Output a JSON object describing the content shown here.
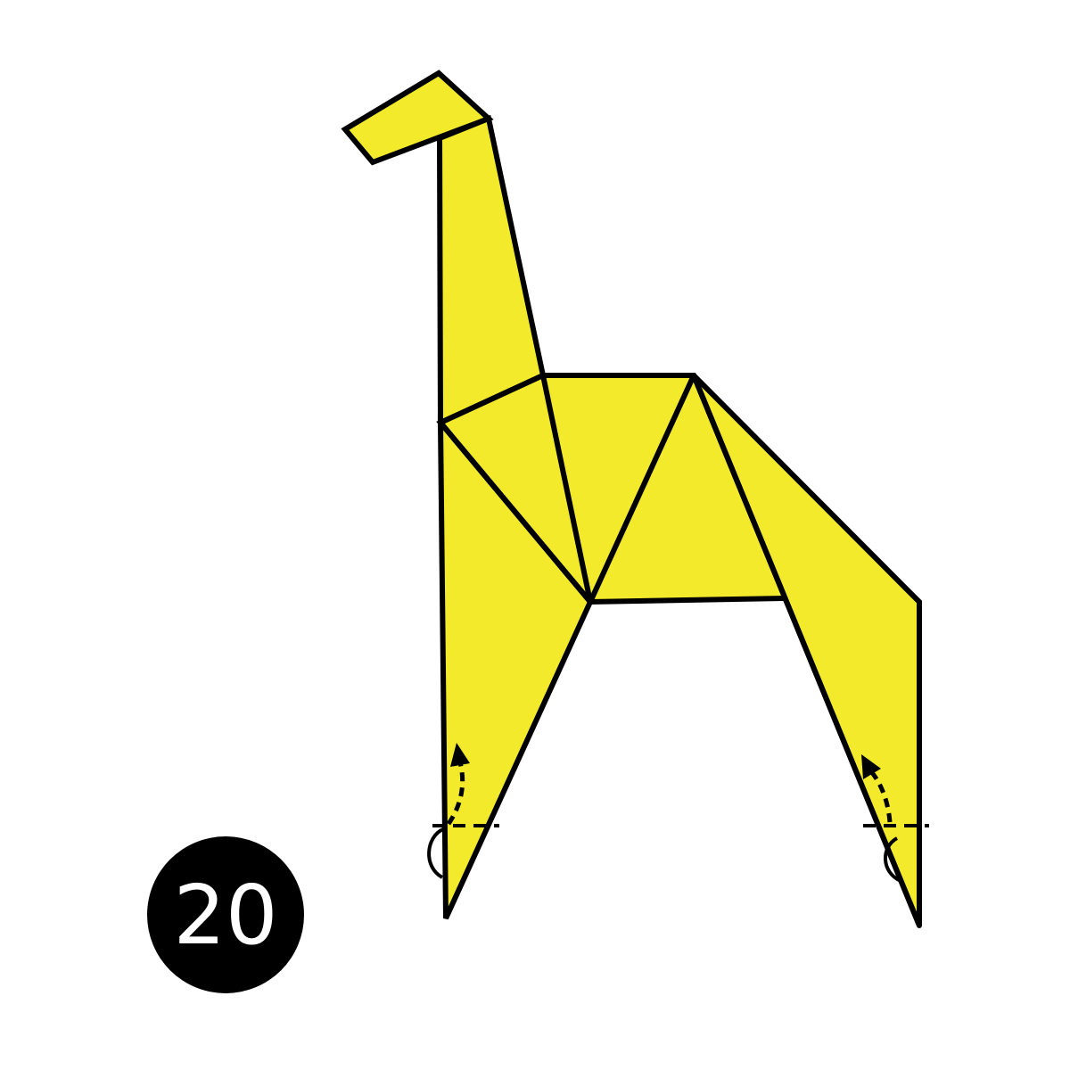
{
  "step": {
    "number": "20"
  },
  "colors": {
    "paper": "#F2EA2B",
    "outline": "#000000",
    "background": "#FFFFFF",
    "badge": "#000000",
    "badge_text": "#FFFFFF"
  },
  "symbols": {
    "fold_lines": "valley-fold-dashed-line",
    "fold_arrows": "fold-up-arrow"
  }
}
